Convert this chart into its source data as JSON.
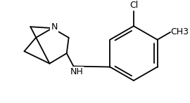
{
  "bg_color": "#ffffff",
  "line_color": "#000000",
  "line_width": 1.3,
  "font_size": 9,
  "figsize": [
    2.7,
    1.47
  ],
  "dpi": 100,
  "N_label": "N",
  "NH_label": "NH",
  "Cl_label": "Cl",
  "CH3_label": "CH3",
  "xlim": [
    0,
    270
  ],
  "ylim": [
    0,
    147
  ]
}
